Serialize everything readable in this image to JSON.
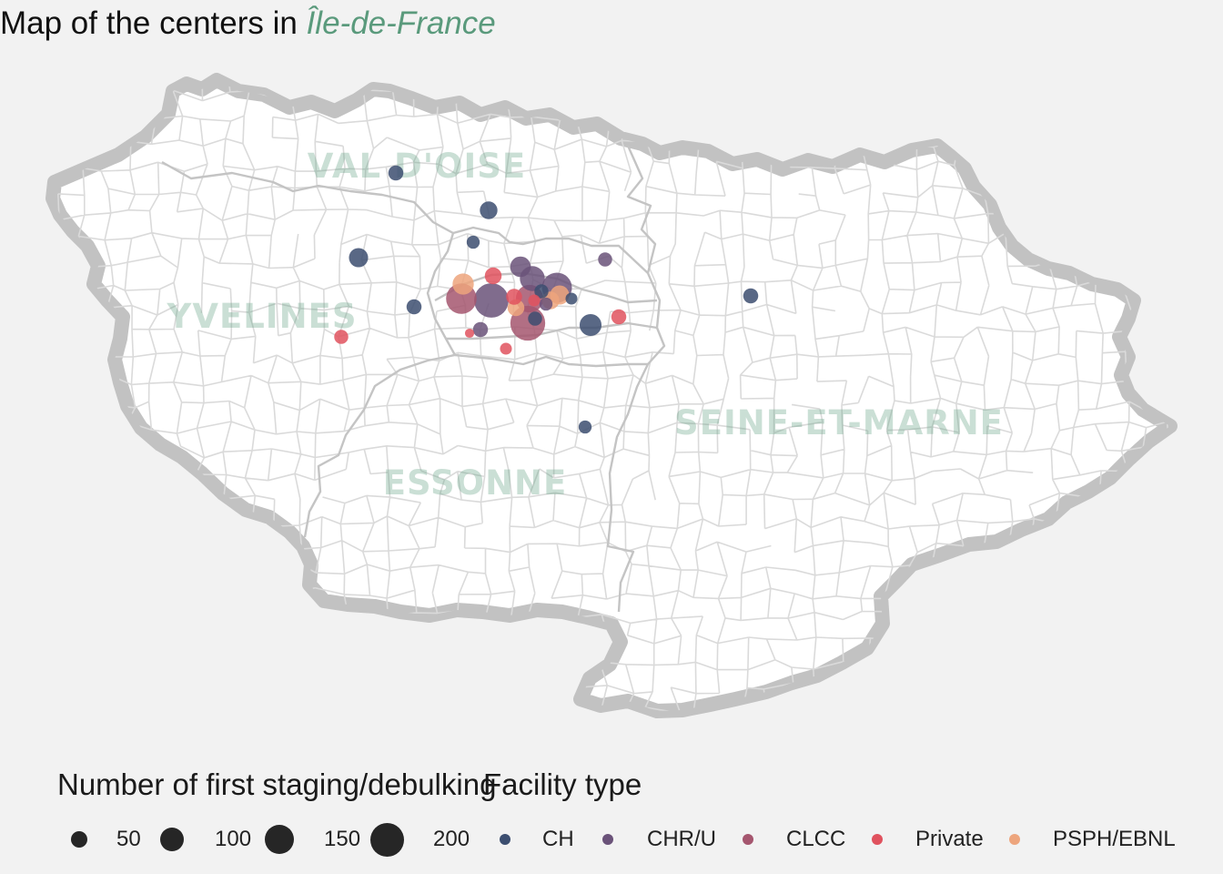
{
  "title": {
    "prefix": "Map of the centers in",
    "accent": "Île-de-France",
    "accent_color": "#5a9a7c"
  },
  "departments": [
    {
      "name": "VAL D'OISE",
      "color": "#5a9a7c"
    },
    {
      "name": "YVELINES",
      "color": "#5a9a7c"
    },
    {
      "name": "ESSONNE",
      "color": "#5a9a7c"
    },
    {
      "name": "SEINE-ET-MARNE",
      "color": "#5a9a7c"
    }
  ],
  "legend": {
    "size_title": "Number of first staging/debulking",
    "type_title": "Facility type",
    "size_items": [
      {
        "label": "50",
        "value": 50
      },
      {
        "label": "100",
        "value": 100
      },
      {
        "label": "150",
        "value": 150
      },
      {
        "label": "200",
        "value": 200
      }
    ],
    "type_items": [
      {
        "label": "CH",
        "color": "#3c4e70"
      },
      {
        "label": "CHR/U",
        "color": "#6a5279"
      },
      {
        "label": "CLCC",
        "color": "#a5566f"
      },
      {
        "label": "Private",
        "color": "#e0525e"
      },
      {
        "label": "PSPH/EBNL",
        "color": "#eda57d"
      }
    ]
  },
  "centers": [
    {
      "type": "CH",
      "n": 40
    },
    {
      "type": "CH",
      "n": 55
    },
    {
      "type": "CH",
      "n": 30
    },
    {
      "type": "CH",
      "n": 65
    },
    {
      "type": "CH",
      "n": 40
    },
    {
      "type": "CH",
      "n": 85
    },
    {
      "type": "CH",
      "n": 25
    },
    {
      "type": "CH",
      "n": 30
    },
    {
      "type": "CH",
      "n": 40
    },
    {
      "type": "CH",
      "n": 35
    },
    {
      "type": "CHR/U",
      "n": 35
    },
    {
      "type": "CHR/U",
      "n": 75
    },
    {
      "type": "CHR/U",
      "n": 110
    },
    {
      "type": "CHR/U",
      "n": 160
    },
    {
      "type": "CHR/U",
      "n": 210
    },
    {
      "type": "CHR/U",
      "n": 40
    },
    {
      "type": "CLCC",
      "n": 165
    },
    {
      "type": "CLCC",
      "n": 215
    },
    {
      "type": "CLCC",
      "n": 135
    },
    {
      "type": "Private",
      "n": 50
    },
    {
      "type": "Private",
      "n": 40
    },
    {
      "type": "Private",
      "n": 25
    },
    {
      "type": "Private",
      "n": 35
    },
    {
      "type": "Private",
      "n": 45
    },
    {
      "type": "Private",
      "n": 15
    },
    {
      "type": "Private",
      "n": 25
    },
    {
      "type": "PSPH/EBNL",
      "n": 80
    },
    {
      "type": "PSPH/EBNL",
      "n": 65
    },
    {
      "type": "PSPH/EBNL",
      "n": 55
    },
    {
      "type": "PSPH/EBNL",
      "n": 50
    },
    {
      "type": "CH",
      "n": 35
    },
    {
      "type": "CHR/U",
      "n": 30
    }
  ]
}
